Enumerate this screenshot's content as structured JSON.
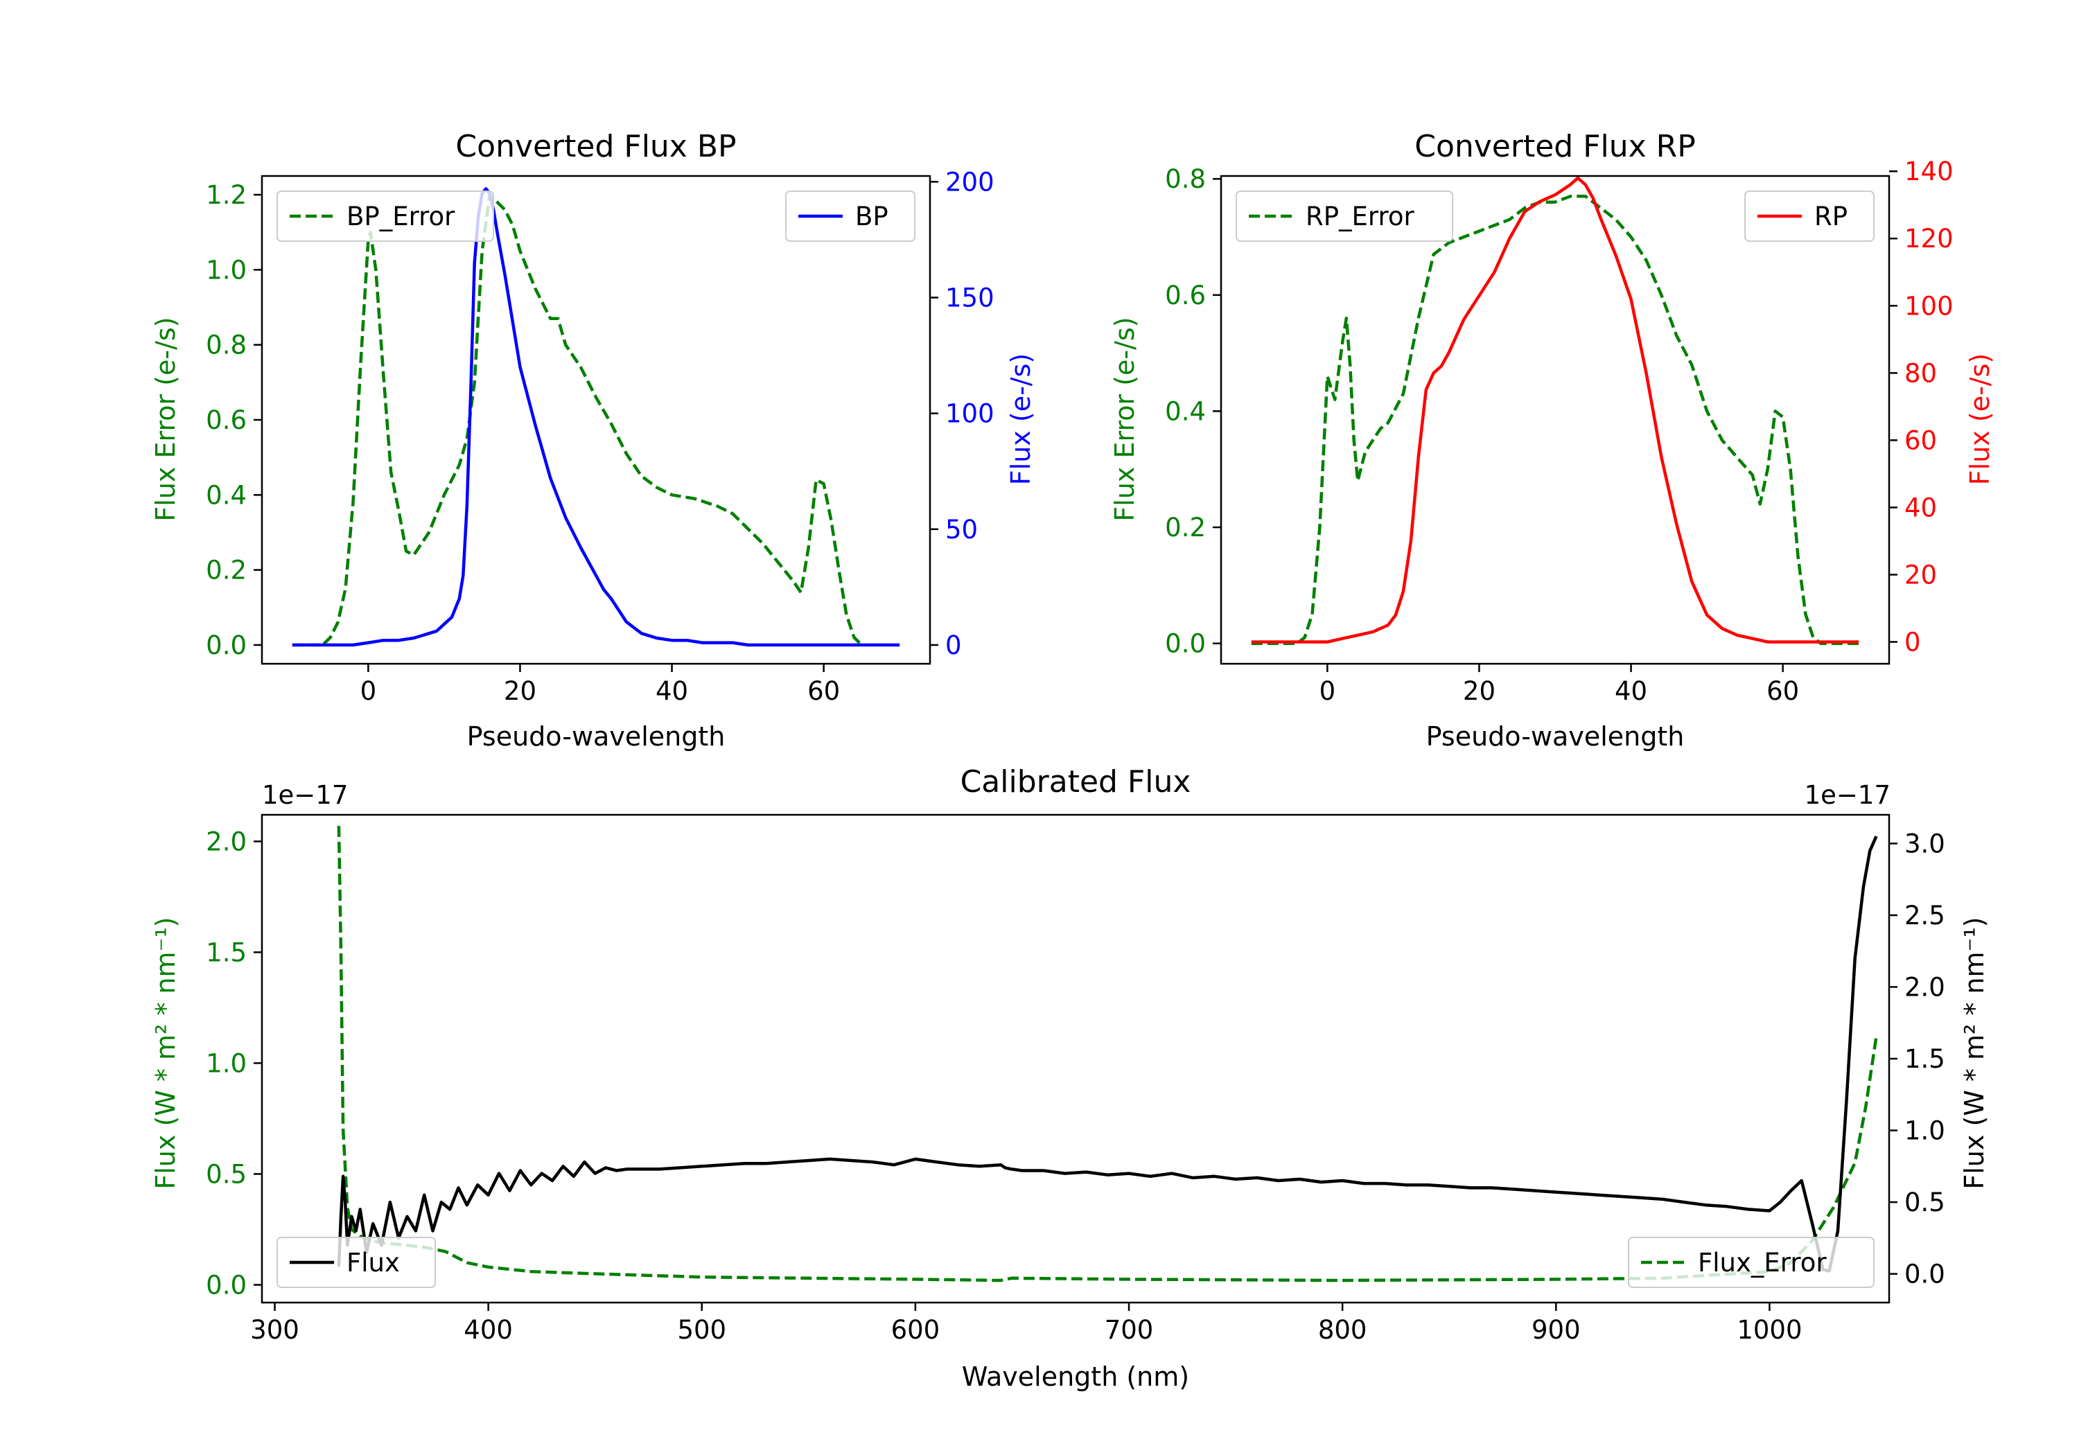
{
  "colors": {
    "green": "#008000",
    "blue": "#0000ff",
    "red": "#ff0000",
    "black": "#000000"
  },
  "chart_data": [
    {
      "id": "bp",
      "type": "line",
      "title": "Converted Flux BP",
      "xlabel": "Pseudo-wavelength",
      "ylabel_left": "Flux Error (e-/s)",
      "ylabel_right": "Flux (e-/s)",
      "xlim": [
        -14,
        74
      ],
      "ylim_left": [
        -0.05,
        1.25
      ],
      "ylim_right": [
        -8.1,
        202.5
      ],
      "xticks": [
        0,
        20,
        40,
        60
      ],
      "xtick_labels": [
        "0",
        "20",
        "40",
        "60"
      ],
      "yticks_left": [
        0,
        0.2,
        0.4,
        0.6,
        0.8,
        1.0,
        1.2
      ],
      "ytick_labels_left": [
        "0.0",
        "0.2",
        "0.4",
        "0.6",
        "0.8",
        "1.0",
        "1.2"
      ],
      "yticks_right": [
        0,
        50,
        100,
        150,
        200
      ],
      "ytick_labels_right": [
        "0",
        "50",
        "100",
        "150",
        "200"
      ],
      "legend_left": {
        "label": "BP_Error",
        "placement": "upper-left"
      },
      "legend_right": {
        "label": "BP",
        "placement": "upper-right"
      },
      "series": [
        {
          "name": "BP_Error",
          "axis": "left",
          "style": "dashed",
          "color": "#008000",
          "x": [
            -10,
            -6,
            -5,
            -4,
            -3,
            -2,
            -1,
            0,
            0.3,
            1,
            2,
            3,
            4,
            5,
            6,
            8,
            10,
            12,
            13,
            14,
            15,
            16,
            17,
            18,
            19,
            20,
            22,
            24,
            25,
            26,
            28,
            30,
            32,
            34,
            36,
            38,
            40,
            43,
            46,
            48,
            50,
            52,
            54,
            56,
            57,
            58,
            59,
            60,
            61,
            62,
            63,
            64,
            65
          ],
          "y": [
            0,
            0,
            0.02,
            0.06,
            0.15,
            0.38,
            0.75,
            1.08,
            1.1,
            1.0,
            0.72,
            0.46,
            0.36,
            0.25,
            0.24,
            0.3,
            0.4,
            0.48,
            0.55,
            0.7,
            1.05,
            1.2,
            1.18,
            1.16,
            1.12,
            1.05,
            0.95,
            0.87,
            0.87,
            0.8,
            0.74,
            0.66,
            0.59,
            0.51,
            0.45,
            0.42,
            0.4,
            0.39,
            0.37,
            0.35,
            0.31,
            0.27,
            0.22,
            0.17,
            0.14,
            0.26,
            0.44,
            0.43,
            0.33,
            0.2,
            0.08,
            0.02,
            0
          ]
        },
        {
          "name": "BP",
          "axis": "right",
          "style": "solid",
          "color": "#0000ff",
          "x": [
            -10,
            -5,
            -2,
            0,
            2,
            4,
            6,
            7,
            8,
            9,
            10,
            11,
            12,
            12.5,
            13,
            13.5,
            14,
            14.5,
            15,
            15.5,
            16,
            16.5,
            17,
            18,
            19,
            20,
            22,
            24,
            26,
            28,
            30,
            31,
            32,
            33,
            34,
            36,
            38,
            40,
            42,
            44,
            46,
            48,
            50,
            55,
            60,
            65,
            70
          ],
          "y": [
            0,
            0,
            0,
            1,
            2,
            2,
            3,
            4,
            5,
            6,
            9,
            12,
            20,
            30,
            60,
            110,
            165,
            185,
            195,
            197,
            195,
            188,
            178,
            160,
            140,
            120,
            95,
            72,
            55,
            42,
            30,
            24,
            20,
            15,
            10,
            5,
            3,
            2,
            2,
            1,
            1,
            1,
            0,
            0,
            0,
            0,
            0
          ]
        }
      ]
    },
    {
      "id": "rp",
      "type": "line",
      "title": "Converted Flux RP",
      "xlabel": "Pseudo-wavelength",
      "ylabel_left": "Flux Error (e-/s)",
      "ylabel_right": "Flux (e-/s)",
      "xlim": [
        -14,
        74
      ],
      "ylim_left": [
        -0.035,
        0.805
      ],
      "ylim_right": [
        -6.5,
        138.6
      ],
      "xticks": [
        0,
        20,
        40,
        60
      ],
      "xtick_labels": [
        "0",
        "20",
        "40",
        "60"
      ],
      "yticks_left": [
        0,
        0.2,
        0.4,
        0.6,
        0.8
      ],
      "ytick_labels_left": [
        "0.0",
        "0.2",
        "0.4",
        "0.6",
        "0.8"
      ],
      "yticks_right": [
        0,
        20,
        40,
        60,
        80,
        100,
        120,
        140
      ],
      "ytick_labels_right": [
        "0",
        "20",
        "40",
        "60",
        "80",
        "100",
        "120",
        "140"
      ],
      "legend_left": {
        "label": "RP_Error",
        "placement": "upper-left"
      },
      "legend_right": {
        "label": "RP",
        "placement": "upper-right"
      },
      "series": [
        {
          "name": "RP_Error",
          "axis": "left",
          "style": "dashed",
          "color": "#008000",
          "x": [
            -10,
            -4,
            -3,
            -2,
            -1,
            0,
            1,
            2,
            2.5,
            3,
            3.5,
            4,
            5,
            6,
            7,
            8,
            10,
            12,
            14,
            16,
            18,
            20,
            22,
            24,
            26,
            28,
            30,
            32,
            33,
            34,
            36,
            38,
            40,
            42,
            44,
            46,
            48,
            50,
            52,
            54,
            56,
            57,
            58,
            59,
            60,
            61,
            62,
            63,
            64,
            65,
            70
          ],
          "y": [
            0,
            0,
            0.01,
            0.05,
            0.2,
            0.46,
            0.42,
            0.52,
            0.56,
            0.48,
            0.35,
            0.28,
            0.33,
            0.35,
            0.37,
            0.38,
            0.43,
            0.56,
            0.67,
            0.69,
            0.7,
            0.71,
            0.72,
            0.73,
            0.75,
            0.76,
            0.76,
            0.77,
            0.77,
            0.77,
            0.75,
            0.73,
            0.7,
            0.66,
            0.6,
            0.53,
            0.48,
            0.4,
            0.35,
            0.32,
            0.29,
            0.24,
            0.3,
            0.4,
            0.39,
            0.3,
            0.15,
            0.05,
            0.01,
            0,
            0
          ]
        },
        {
          "name": "RP",
          "axis": "right",
          "style": "solid",
          "color": "#ff0000",
          "x": [
            -10,
            -5,
            0,
            2,
            4,
            6,
            8,
            9,
            10,
            11,
            12,
            13,
            14,
            15,
            16,
            18,
            20,
            22,
            24,
            26,
            28,
            30,
            32,
            33,
            34,
            35,
            36,
            38,
            40,
            42,
            44,
            46,
            48,
            50,
            52,
            54,
            56,
            58,
            60,
            65,
            70
          ],
          "y": [
            0,
            0,
            0,
            1,
            2,
            3,
            5,
            8,
            15,
            30,
            55,
            75,
            80,
            82,
            86,
            96,
            103,
            110,
            120,
            128,
            131,
            133,
            136,
            138,
            136,
            132,
            126,
            115,
            102,
            80,
            55,
            35,
            18,
            8,
            4,
            2,
            1,
            0,
            0,
            0,
            0
          ]
        }
      ]
    },
    {
      "id": "calibrated",
      "type": "line",
      "title": "Calibrated Flux",
      "xlabel": "Wavelength (nm)",
      "ylabel_left": "Flux (W * m² * nm⁻¹)",
      "ylabel_right": "Flux (W * m² * nm⁻¹)",
      "offset_left": "1e−17",
      "offset_right": "1e−17",
      "xlim": [
        294,
        1056
      ],
      "ylim_left": [
        -0.08,
        2.12
      ],
      "ylim_right": [
        -0.2,
        3.2
      ],
      "xticks": [
        300,
        400,
        500,
        600,
        700,
        800,
        900,
        1000
      ],
      "xtick_labels": [
        "300",
        "400",
        "500",
        "600",
        "700",
        "800",
        "900",
        "1000"
      ],
      "yticks_left": [
        0,
        0.5,
        1.0,
        1.5,
        2.0
      ],
      "ytick_labels_left": [
        "0.0",
        "0.5",
        "1.0",
        "1.5",
        "2.0"
      ],
      "yticks_right": [
        0,
        0.5,
        1.0,
        1.5,
        2.0,
        2.5,
        3.0
      ],
      "ytick_labels_right": [
        "0.0",
        "0.5",
        "1.0",
        "1.5",
        "2.0",
        "2.5",
        "3.0"
      ],
      "legend_left": {
        "label": "Flux",
        "placement": "lower-left"
      },
      "legend_right": {
        "label": "Flux_Error",
        "placement": "lower-right"
      },
      "series": [
        {
          "name": "Flux_Error",
          "axis": "left",
          "style": "dashed",
          "color": "#008000",
          "x": [
            330,
            331,
            332,
            334,
            336,
            340,
            345,
            350,
            360,
            370,
            380,
            390,
            400,
            420,
            450,
            500,
            550,
            600,
            640,
            645,
            700,
            800,
            900,
            950,
            1000,
            1010,
            1020,
            1030,
            1040,
            1045,
            1050
          ],
          "y": [
            2.07,
            1.5,
            0.7,
            0.35,
            0.25,
            0.22,
            0.2,
            0.19,
            0.18,
            0.17,
            0.15,
            0.1,
            0.08,
            0.06,
            0.05,
            0.035,
            0.03,
            0.025,
            0.02,
            0.03,
            0.025,
            0.02,
            0.025,
            0.03,
            0.06,
            0.1,
            0.2,
            0.35,
            0.55,
            0.8,
            1.12
          ]
        },
        {
          "name": "Flux",
          "axis": "right",
          "style": "solid",
          "color": "#000000",
          "x": [
            330,
            331,
            332,
            333,
            334,
            336,
            338,
            340,
            343,
            346,
            350,
            354,
            358,
            362,
            366,
            370,
            374,
            378,
            382,
            386,
            390,
            395,
            400,
            405,
            410,
            415,
            420,
            425,
            430,
            435,
            440,
            445,
            450,
            455,
            460,
            465,
            470,
            480,
            490,
            500,
            510,
            520,
            530,
            540,
            550,
            560,
            570,
            580,
            590,
            600,
            610,
            620,
            630,
            640,
            642,
            645,
            650,
            660,
            670,
            680,
            690,
            700,
            710,
            720,
            730,
            740,
            750,
            760,
            770,
            780,
            790,
            800,
            810,
            820,
            830,
            840,
            850,
            860,
            870,
            880,
            890,
            900,
            910,
            920,
            930,
            940,
            950,
            960,
            970,
            980,
            990,
            1000,
            1005,
            1010,
            1015,
            1020,
            1025,
            1028,
            1032,
            1036,
            1040,
            1044,
            1047,
            1050
          ],
          "y": [
            0.05,
            0.4,
            0.68,
            0.5,
            0.2,
            0.4,
            0.3,
            0.45,
            0.15,
            0.35,
            0.2,
            0.5,
            0.25,
            0.4,
            0.3,
            0.55,
            0.3,
            0.5,
            0.45,
            0.6,
            0.48,
            0.62,
            0.55,
            0.7,
            0.58,
            0.72,
            0.62,
            0.7,
            0.65,
            0.75,
            0.68,
            0.78,
            0.7,
            0.74,
            0.72,
            0.73,
            0.73,
            0.73,
            0.74,
            0.75,
            0.76,
            0.77,
            0.77,
            0.78,
            0.79,
            0.8,
            0.79,
            0.78,
            0.76,
            0.8,
            0.78,
            0.76,
            0.75,
            0.76,
            0.74,
            0.73,
            0.72,
            0.72,
            0.7,
            0.71,
            0.69,
            0.7,
            0.68,
            0.7,
            0.67,
            0.68,
            0.66,
            0.67,
            0.65,
            0.66,
            0.64,
            0.65,
            0.63,
            0.63,
            0.62,
            0.62,
            0.61,
            0.6,
            0.6,
            0.59,
            0.58,
            0.57,
            0.56,
            0.55,
            0.54,
            0.53,
            0.52,
            0.5,
            0.48,
            0.47,
            0.45,
            0.44,
            0.5,
            0.58,
            0.65,
            0.35,
            0.03,
            0.02,
            0.3,
            1.2,
            2.2,
            2.7,
            2.95,
            3.05
          ]
        }
      ]
    }
  ]
}
